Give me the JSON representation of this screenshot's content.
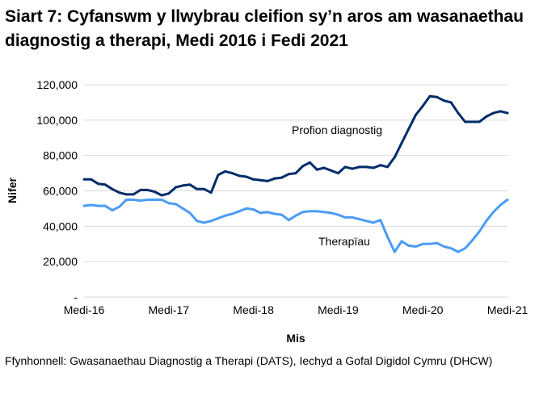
{
  "title": "Siart 7: Cyfanswm y llwybrau cleifion sy’n aros am wasanaethau diagnostig a therapi, Medi 2016 i Fedi 2021",
  "source": "Ffynhonnell: Gwasanaethau Diagnostig a Therapi (DATS), Iechyd a Gofal Digidol Cymru (DHCW)",
  "chart_data": {
    "type": "line",
    "title": "Siart 7: Cyfanswm y llwybrau cleifion sy’n aros am wasanaethau diagnostig a therapi, Medi 2016 i Fedi 2021",
    "xlabel": "Mis",
    "ylabel": "Nifer",
    "ylim": [
      0,
      120000
    ],
    "yticks": [
      0,
      20000,
      40000,
      60000,
      80000,
      100000,
      120000
    ],
    "ytick_labels": [
      "-",
      "20,000",
      "40,000",
      "60,000",
      "80,000",
      "100,000",
      "120,000"
    ],
    "xtick_labels": [
      "Medi-16",
      "Medi-17",
      "Medi-18",
      "Medi-19",
      "Medi-20",
      "Medi-21"
    ],
    "x_start": "2016-09",
    "x_end": "2021-09",
    "grid": "horizontal",
    "legend": "inline labels",
    "series": [
      {
        "name": "Profion diagnostig",
        "color": "#002d6a",
        "values": [
          66500,
          66500,
          64000,
          63500,
          61000,
          59000,
          58000,
          58000,
          60500,
          60500,
          59500,
          57500,
          58500,
          62000,
          63000,
          63500,
          61000,
          61000,
          59000,
          69000,
          71000,
          70000,
          68500,
          68000,
          66500,
          66000,
          65500,
          67000,
          67500,
          69500,
          70000,
          74000,
          76000,
          72000,
          73000,
          71500,
          70000,
          73500,
          72500,
          73500,
          73500,
          73000,
          74500,
          73500,
          79000,
          87000,
          95000,
          103000,
          108000,
          113500,
          113000,
          111000,
          110000,
          104000,
          99000,
          99000,
          99000,
          102000,
          104000,
          105000,
          104000
        ]
      },
      {
        "name": "Therapïau",
        "color": "#4c9cf5",
        "values": [
          51500,
          52000,
          51500,
          51500,
          49000,
          51000,
          55000,
          55000,
          54500,
          55000,
          55000,
          55000,
          53000,
          52500,
          50000,
          47500,
          43000,
          42000,
          43000,
          44500,
          46000,
          47000,
          48500,
          50000,
          49500,
          47500,
          48000,
          47000,
          46500,
          43500,
          46000,
          48000,
          48500,
          48500,
          48000,
          47500,
          46500,
          45000,
          45000,
          44000,
          43000,
          42000,
          43500,
          34000,
          25500,
          31500,
          29000,
          28500,
          30000,
          30000,
          30500,
          28500,
          27500,
          25500,
          27500,
          32000,
          37000,
          43000,
          48000,
          52000,
          55000
        ]
      }
    ]
  }
}
